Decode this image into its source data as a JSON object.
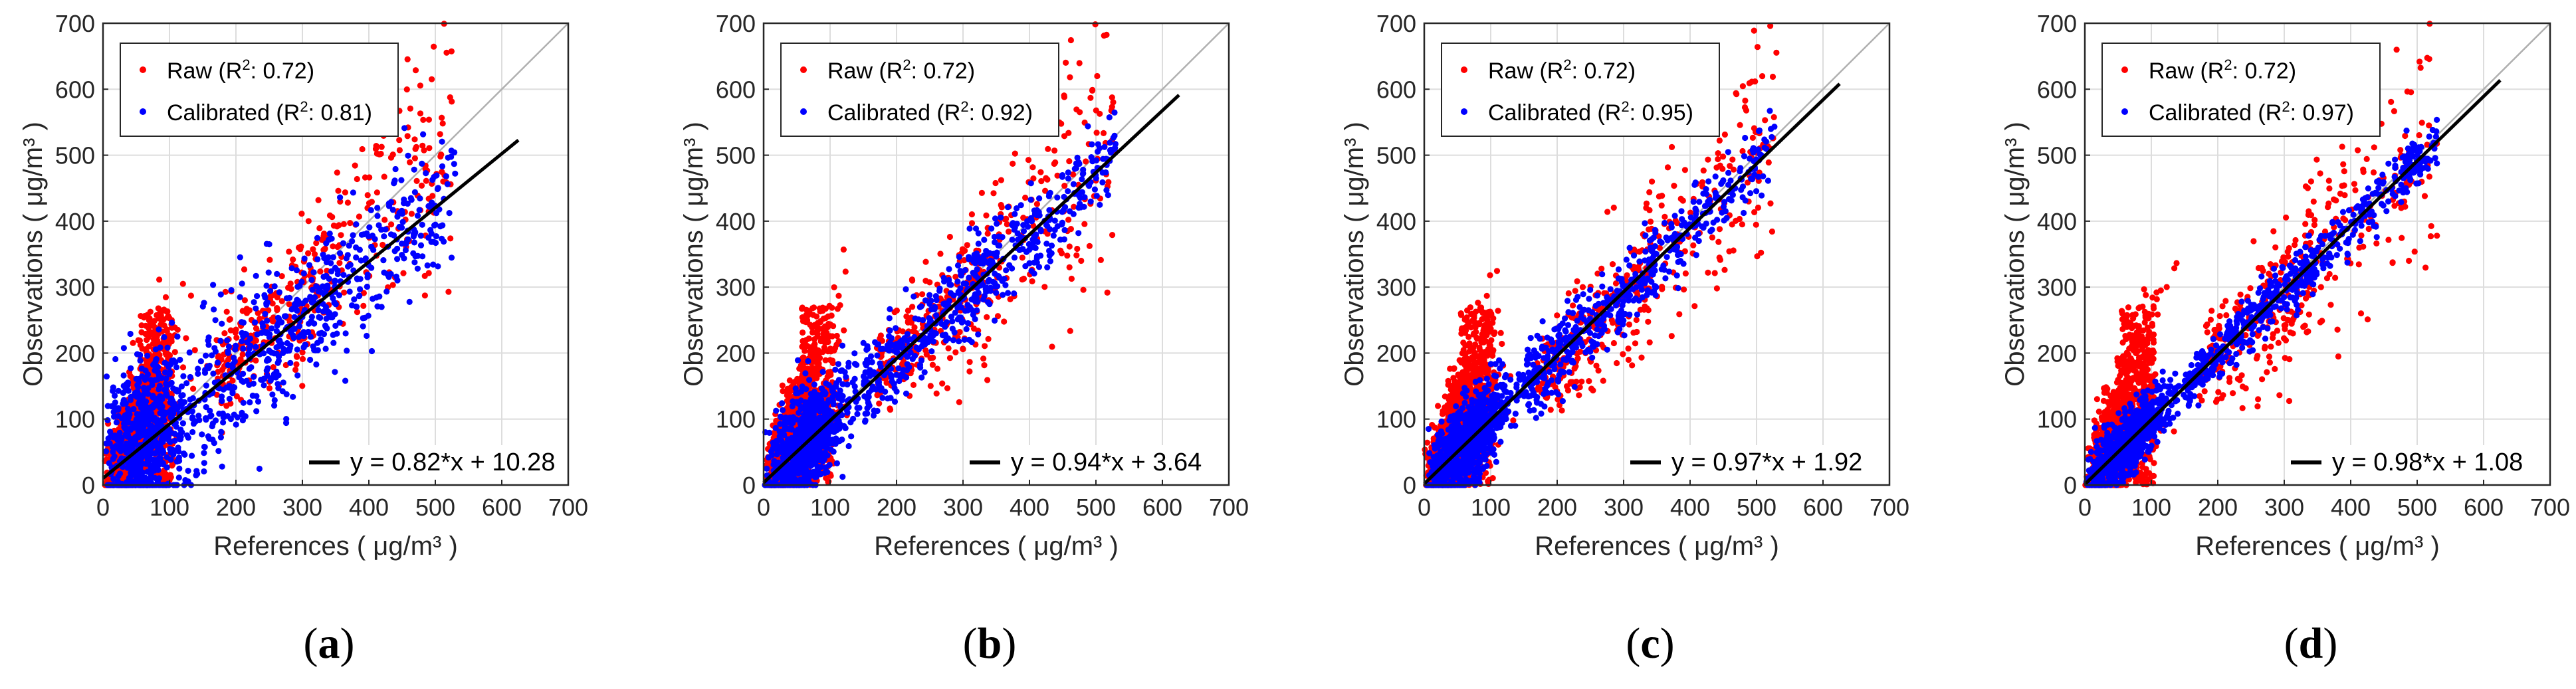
{
  "figure": {
    "colors": {
      "raw": "#ff0000",
      "calibrated": "#0000ff",
      "fit": "#000000",
      "identity": "#b0b0b0",
      "grid": "#dddddd",
      "axis": "#262626"
    }
  },
  "chart_data": [
    {
      "type": "scatter",
      "panel_label": "a",
      "xlabel": "References ( μg/m³ )",
      "ylabel": "Observations ( μg/m³ )",
      "xlim": [
        0,
        700
      ],
      "ylim": [
        0,
        700
      ],
      "xticks": [
        0,
        100,
        200,
        300,
        400,
        500,
        600,
        700
      ],
      "yticks": [
        0,
        100,
        200,
        300,
        400,
        500,
        600,
        700
      ],
      "grid": true,
      "legend_location": "top-left",
      "series": [
        {
          "name": "Raw",
          "r2": "0.72",
          "color": "#ff0000",
          "marker": "dot"
        },
        {
          "name": "Calibrated",
          "r2": "0.81",
          "color": "#0000ff",
          "marker": "dot"
        }
      ],
      "fit": {
        "slope": 0.82,
        "intercept": 10.28,
        "x_range": [
          0,
          625
        ],
        "label": "y = 0.82*x + 10.28"
      },
      "identity_line": true,
      "calib_spread": 55
    },
    {
      "type": "scatter",
      "panel_label": "b",
      "xlabel": "References ( μg/m³ )",
      "ylabel": "Observations ( μg/m³ )",
      "xlim": [
        0,
        700
      ],
      "ylim": [
        0,
        700
      ],
      "xticks": [
        0,
        100,
        200,
        300,
        400,
        500,
        600,
        700
      ],
      "yticks": [
        0,
        100,
        200,
        300,
        400,
        500,
        600,
        700
      ],
      "grid": true,
      "legend_location": "top-left",
      "series": [
        {
          "name": "Raw",
          "r2": "0.72",
          "color": "#ff0000",
          "marker": "dot"
        },
        {
          "name": "Calibrated",
          "r2": "0.92",
          "color": "#0000ff",
          "marker": "dot"
        }
      ],
      "fit": {
        "slope": 0.94,
        "intercept": 3.64,
        "x_range": [
          0,
          625
        ],
        "label": "y = 0.94*x + 3.64"
      },
      "identity_line": true,
      "calib_spread": 35
    },
    {
      "type": "scatter",
      "panel_label": "c",
      "xlabel": "References ( μg/m³ )",
      "ylabel": "Observations ( μg/m³ )",
      "xlim": [
        0,
        700
      ],
      "ylim": [
        0,
        700
      ],
      "xticks": [
        0,
        100,
        200,
        300,
        400,
        500,
        600,
        700
      ],
      "yticks": [
        0,
        100,
        200,
        300,
        400,
        500,
        600,
        700
      ],
      "grid": true,
      "legend_location": "top-left",
      "series": [
        {
          "name": "Raw",
          "r2": "0.72",
          "color": "#ff0000",
          "marker": "dot"
        },
        {
          "name": "Calibrated",
          "r2": "0.95",
          "color": "#0000ff",
          "marker": "dot"
        }
      ],
      "fit": {
        "slope": 0.97,
        "intercept": 1.92,
        "x_range": [
          0,
          625
        ],
        "label": "y = 0.97*x + 1.92"
      },
      "identity_line": true,
      "calib_spread": 28
    },
    {
      "type": "scatter",
      "panel_label": "d",
      "xlabel": "References ( μg/m³ )",
      "ylabel": "Observations ( μg/m³ )",
      "xlim": [
        0,
        700
      ],
      "ylim": [
        0,
        700
      ],
      "xticks": [
        0,
        100,
        200,
        300,
        400,
        500,
        600,
        700
      ],
      "yticks": [
        0,
        100,
        200,
        300,
        400,
        500,
        600,
        700
      ],
      "grid": true,
      "legend_location": "top-left",
      "series": [
        {
          "name": "Raw",
          "r2": "0.72",
          "color": "#ff0000",
          "marker": "dot"
        },
        {
          "name": "Calibrated",
          "r2": "0.97",
          "color": "#0000ff",
          "marker": "dot"
        }
      ],
      "fit": {
        "slope": 0.98,
        "intercept": 1.08,
        "x_range": [
          0,
          625
        ],
        "label": "y = 0.98*x + 1.08"
      },
      "identity_line": true,
      "calib_spread": 20
    }
  ]
}
